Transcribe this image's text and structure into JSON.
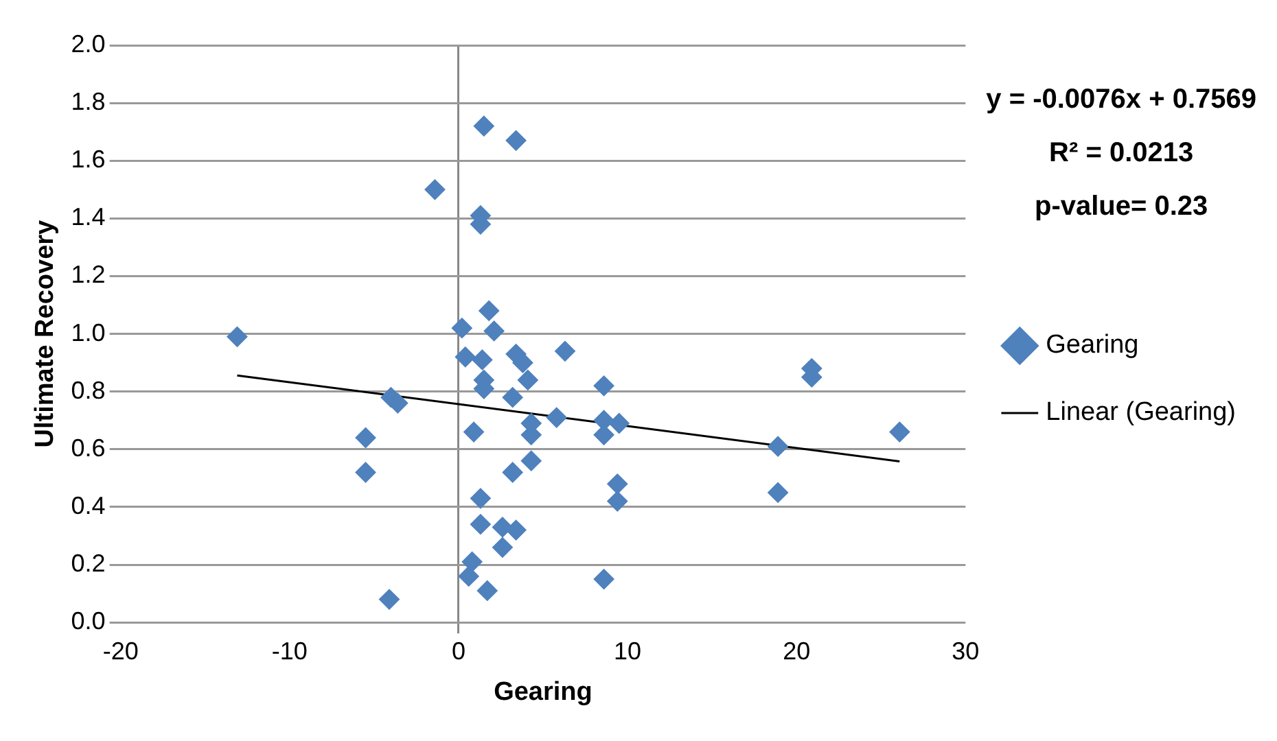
{
  "chart_data": {
    "type": "scatter",
    "xlabel": "Gearing",
    "ylabel": "Ultimate Recovery",
    "annotations": [
      "y = -0.0076x + 0.7569",
      "R² = 0.0213",
      "p-value= 0.23"
    ],
    "series": [
      {
        "name": "Gearing",
        "color": "#4f81bd",
        "marker": "diamond",
        "x": [
          -13.1,
          -1.4,
          1.5,
          3.4,
          1.3,
          1.3,
          -4.0,
          -3.6,
          -5.5,
          -5.5,
          -4.1,
          0.9,
          1.3,
          1.3,
          0.8,
          0.6,
          1.7,
          0.2,
          1.8,
          2.1,
          0.4,
          1.4,
          1.5,
          1.5,
          3.4,
          3.8,
          4.1,
          3.2,
          6.3,
          8.6,
          5.8,
          4.3,
          4.3,
          8.6,
          9.5,
          8.6,
          4.3,
          3.2,
          9.4,
          9.4,
          2.6,
          3.4,
          2.6,
          8.6,
          20.9,
          20.9,
          18.9,
          18.9,
          26.1
        ],
        "values": [
          0.99,
          1.5,
          1.72,
          1.67,
          1.41,
          1.38,
          0.78,
          0.76,
          0.64,
          0.52,
          0.08,
          0.66,
          0.43,
          0.34,
          0.21,
          0.16,
          0.11,
          1.02,
          1.08,
          1.01,
          0.92,
          0.91,
          0.84,
          0.81,
          0.93,
          0.9,
          0.84,
          0.78,
          0.94,
          0.82,
          0.71,
          0.69,
          0.65,
          0.7,
          0.69,
          0.65,
          0.56,
          0.52,
          0.48,
          0.42,
          0.33,
          0.32,
          0.26,
          0.15,
          0.88,
          0.85,
          0.61,
          0.45,
          0.66
        ]
      },
      {
        "name": "Linear (Gearing)",
        "color": "#000000",
        "type": "line",
        "marker": "none",
        "x": [
          -13.1,
          26.1
        ],
        "values": [
          0.856,
          0.558
        ]
      }
    ],
    "xlim": [
      -20,
      30
    ],
    "xticks": [
      -20,
      -10,
      0,
      10,
      20,
      30
    ],
    "ylim": [
      0,
      2
    ],
    "yticks": [
      {
        "value": 0,
        "label": "0.0"
      },
      {
        "value": 0.2,
        "label": "0.2"
      },
      {
        "value": 0.4,
        "label": "0.4"
      },
      {
        "value": 0.6,
        "label": "0.6"
      },
      {
        "value": 0.8,
        "label": "0.8"
      },
      {
        "value": 1,
        "label": "1.0"
      },
      {
        "value": 1.2,
        "label": "1.2"
      },
      {
        "value": 1.4,
        "label": "1.4"
      },
      {
        "value": 1.6,
        "label": "1.6"
      },
      {
        "value": 1.8,
        "label": "1.8"
      },
      {
        "value": 2,
        "label": "2.0"
      }
    ],
    "grid": "y",
    "legend": "right"
  }
}
